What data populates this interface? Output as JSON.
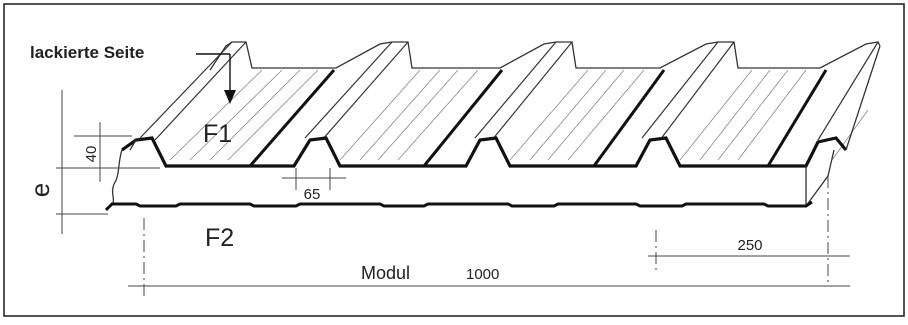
{
  "labels": {
    "painted_side": "lackierte Seite",
    "face_top": "F1",
    "face_bottom": "F2",
    "dim_rib_height": "40",
    "dim_rib_width": "65",
    "dim_thickness": "e",
    "dim_pitch": "250",
    "module_word": "Modul",
    "module_value": "1000"
  },
  "colors": {
    "line": "#1a1a1a",
    "thin": "#555555",
    "background": "#ffffff"
  }
}
